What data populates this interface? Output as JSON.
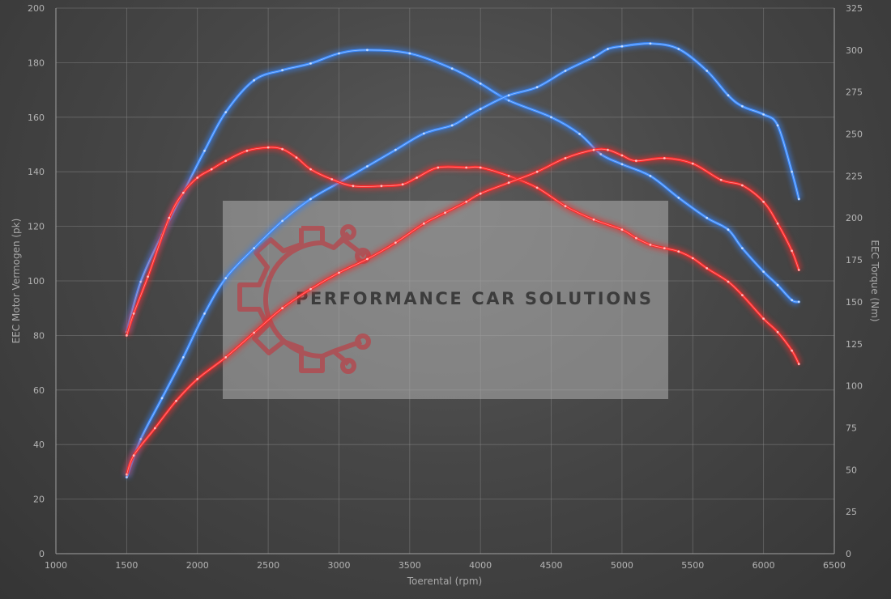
{
  "colors": {
    "tuned": "#ff2a2a",
    "stock": "#3c8cff",
    "tuned_glow": "#e03030",
    "stock_glow": "#3a7fe6"
  },
  "watermark": {
    "text": "PERFORMANCE CAR SOLUTIONS",
    "logo_icon": "gear-circuit-logo"
  },
  "chart_data": {
    "type": "line",
    "title": "",
    "xlabel": "Toerental (rpm)",
    "ylabel": "EEC Motor Vermogen (pk)",
    "y2label": "EEC Torque (Nm)",
    "xlim": [
      1000,
      6500
    ],
    "ylim": [
      0,
      200
    ],
    "y2lim": [
      0,
      325
    ],
    "xticks": [
      1000,
      1500,
      2000,
      2500,
      3000,
      3500,
      4000,
      4500,
      5000,
      5500,
      6000,
      6500
    ],
    "yticks": [
      0,
      20,
      40,
      60,
      80,
      100,
      120,
      140,
      160,
      180,
      200
    ],
    "y2ticks": [
      0,
      25,
      50,
      75,
      100,
      125,
      150,
      175,
      200,
      225,
      250,
      275,
      300,
      325
    ],
    "grid": true,
    "series": [
      {
        "style": "blue",
        "axis": "right",
        "x": [
          1500,
          1600,
          1750,
          1900,
          2050,
          2200,
          2400,
          2600,
          2800,
          3000,
          3200,
          3500,
          3800,
          4000,
          4200,
          4500,
          4700,
          4850,
          5000,
          5200,
          5400,
          5600,
          5750,
          5850,
          6000,
          6100,
          6200,
          6250
        ],
        "y": [
          132,
          162,
          190,
          215,
          240,
          263,
          282,
          288,
          292,
          298,
          300,
          298,
          289,
          280,
          270,
          260,
          250,
          238,
          232,
          225,
          212,
          200,
          193,
          182,
          168,
          160,
          151,
          150
        ]
      },
      {
        "style": "blue",
        "axis": "left",
        "x": [
          1500,
          1600,
          1750,
          1900,
          2050,
          2200,
          2400,
          2600,
          2800,
          3000,
          3200,
          3400,
          3600,
          3800,
          3900,
          4000,
          4200,
          4400,
          4600,
          4800,
          4900,
          5000,
          5200,
          5400,
          5600,
          5750,
          5850,
          6000,
          6100,
          6200,
          6250
        ],
        "y": [
          28,
          42,
          57,
          72,
          88,
          101,
          112,
          122,
          130,
          136,
          142,
          148,
          154,
          157,
          160,
          163,
          168,
          171,
          177,
          182,
          185,
          186,
          187,
          185,
          177,
          168,
          164,
          161,
          157,
          140,
          130
        ]
      },
      {
        "style": "red",
        "axis": "right",
        "x": [
          1500,
          1550,
          1650,
          1800,
          1900,
          2000,
          2100,
          2200,
          2350,
          2500,
          2600,
          2700,
          2800,
          2950,
          3100,
          3300,
          3450,
          3550,
          3700,
          3900,
          4000,
          4200,
          4400,
          4600,
          4800,
          5000,
          5100,
          5200,
          5300,
          5400,
          5500,
          5600,
          5750,
          5850,
          6000,
          6100,
          6200,
          6250
        ],
        "y": [
          130,
          143,
          165,
          200,
          215,
          224,
          229,
          234,
          240,
          242,
          241,
          236,
          229,
          223,
          219,
          219,
          220,
          224,
          230,
          230,
          230,
          225,
          218,
          207,
          199,
          193,
          188,
          184,
          182,
          180,
          176,
          170,
          162,
          154,
          140,
          132,
          121,
          113
        ]
      },
      {
        "style": "red",
        "axis": "left",
        "x": [
          1500,
          1550,
          1700,
          1850,
          2000,
          2200,
          2400,
          2600,
          2800,
          3000,
          3200,
          3400,
          3600,
          3750,
          3900,
          4000,
          4200,
          4400,
          4600,
          4800,
          4900,
          5000,
          5100,
          5300,
          5500,
          5700,
          5850,
          6000,
          6100,
          6200,
          6250
        ],
        "y": [
          29,
          36,
          46,
          56,
          64,
          72,
          81,
          90,
          97,
          103,
          108,
          114,
          121,
          125,
          129,
          132,
          136,
          140,
          145,
          148,
          148,
          146,
          144,
          145,
          143,
          137,
          135,
          129,
          121,
          111,
          104
        ]
      }
    ]
  }
}
